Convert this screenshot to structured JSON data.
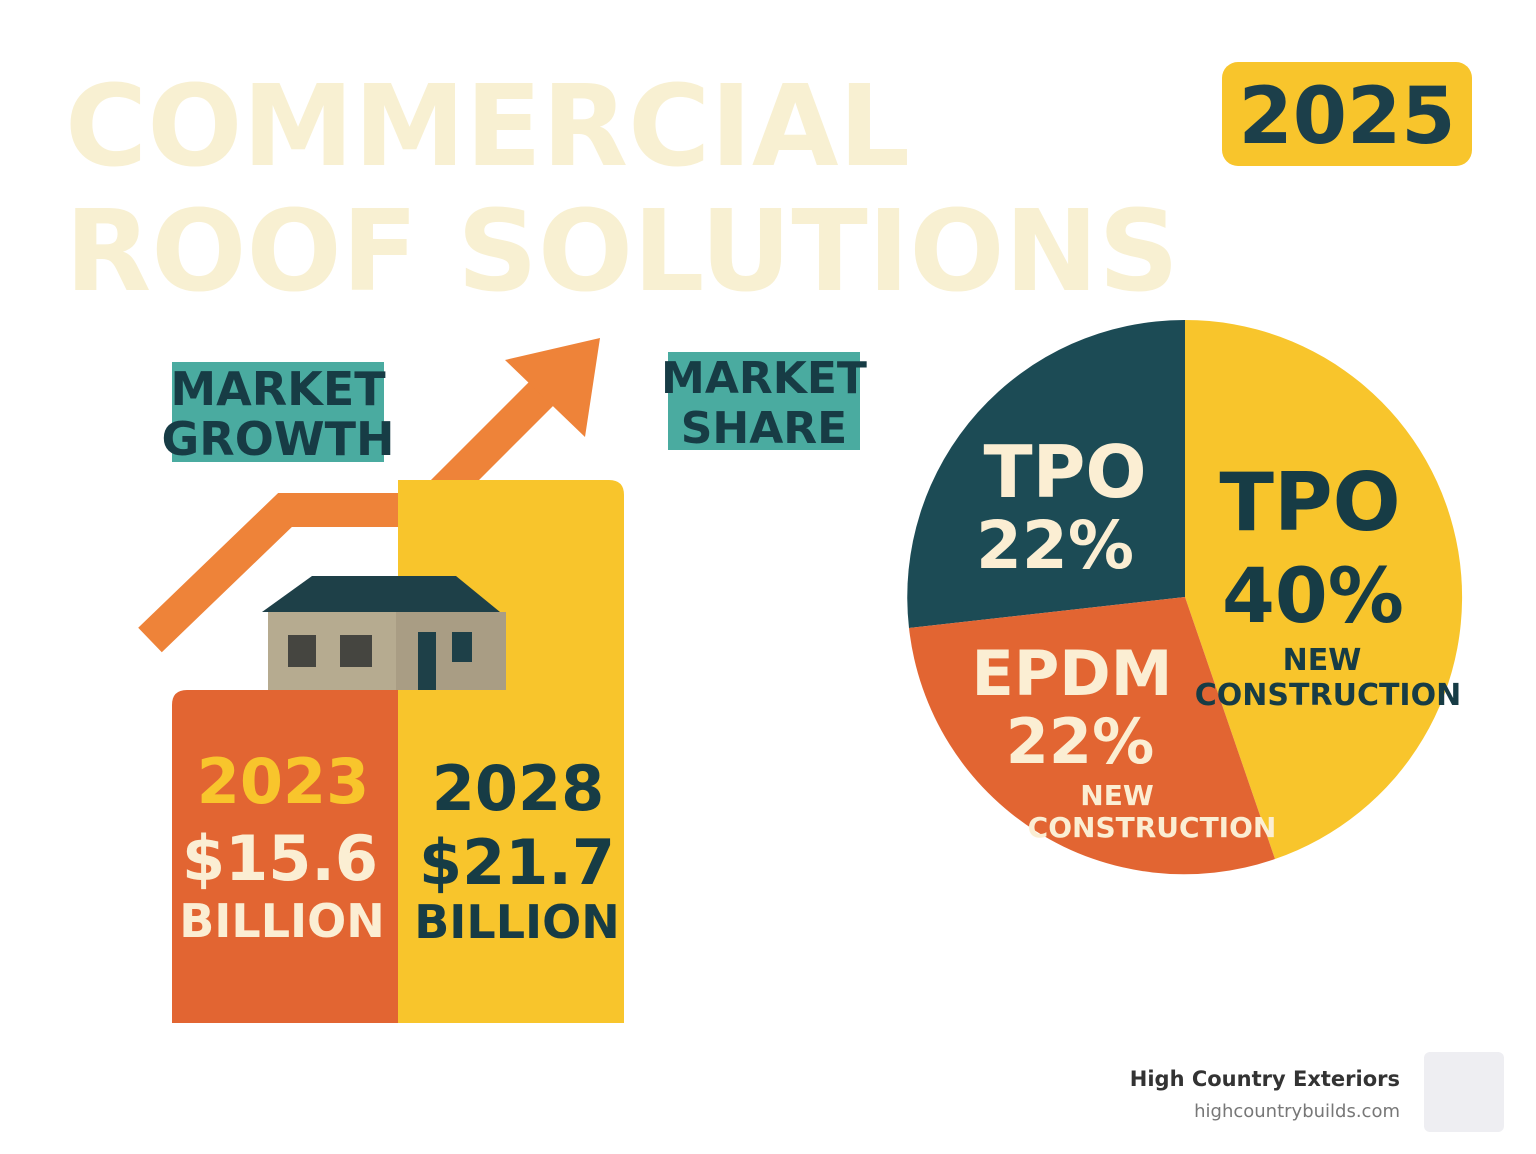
{
  "header": {
    "title_lines": [
      "COMMERCIAL",
      "ROOF SOLUTIONS"
    ],
    "year_badge": "2025"
  },
  "growth": {
    "label_lines": [
      "MARKET",
      "GROWTH"
    ],
    "bars": [
      {
        "year": "2023",
        "amount": "$15.6",
        "unit": "BILLION"
      },
      {
        "year": "2028",
        "amount": "$21.7",
        "unit": "BILLION"
      }
    ]
  },
  "share": {
    "label_lines": [
      "MARKET",
      "SHARE"
    ],
    "slices": [
      {
        "name": "TPO",
        "percent": "22%"
      },
      {
        "name": "TPO",
        "percent": "40%",
        "note_lines": [
          "NEW",
          "CONSTRUCTION"
        ]
      },
      {
        "name": "EPDM",
        "percent": "22%",
        "note_lines": [
          "NEW",
          "CONSTRUCTION"
        ]
      }
    ]
  },
  "footer": {
    "company": "High Country Exteriors",
    "website": "highcountrybuilds.com"
  }
}
